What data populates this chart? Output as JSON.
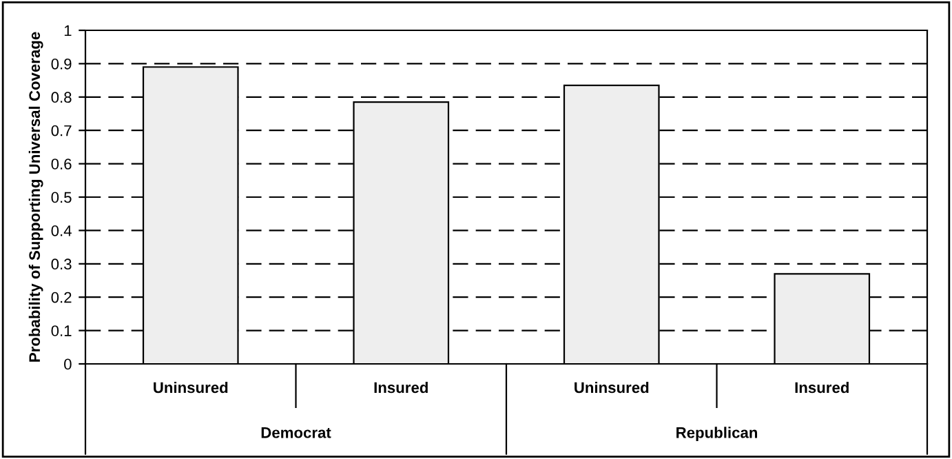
{
  "chart_data": {
    "type": "bar",
    "ylabel": "Probability of Supporting Universal Coverage",
    "categories": [
      "Uninsured",
      "Insured",
      "Uninsured",
      "Insured"
    ],
    "values": [
      0.89,
      0.785,
      0.835,
      0.27
    ],
    "color": "#eeeeee",
    "ylim": [
      0,
      1
    ],
    "yticks": [
      0,
      0.1,
      0.2,
      0.3,
      0.4,
      0.5,
      0.6,
      0.7,
      0.8,
      0.9,
      1
    ],
    "grid": "y",
    "annotations": [
      "Democrat",
      "Republican"
    ]
  }
}
